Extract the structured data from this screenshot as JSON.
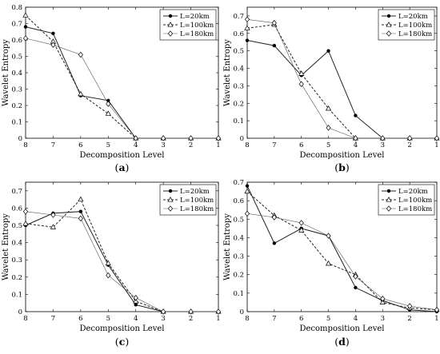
{
  "chart_data": [
    {
      "type": "line",
      "panel_label": "a",
      "x": [
        8,
        7,
        6,
        5,
        4,
        3,
        2,
        1
      ],
      "xlabel": "Decomposition Level",
      "ylabel": "Wavelet Entropy",
      "xlim": [
        8,
        1
      ],
      "ylim": [
        0,
        0.8
      ],
      "yticks": [
        0,
        0.1,
        0.2,
        0.3,
        0.4,
        0.5,
        0.6,
        0.7,
        0.8
      ],
      "legend_position": "top-right",
      "series": [
        {
          "name": "L=20km",
          "marker": "dot",
          "dash": "solid",
          "values": [
            0.68,
            0.64,
            0.26,
            0.23,
            0,
            0,
            0,
            0
          ]
        },
        {
          "name": "L=100km",
          "marker": "triangle",
          "dash": "dashed",
          "values": [
            0.75,
            0.59,
            0.27,
            0.15,
            0,
            0,
            0,
            0
          ]
        },
        {
          "name": "L=180km",
          "marker": "diamond",
          "dash": "thin",
          "values": [
            0.61,
            0.57,
            0.51,
            0.21,
            0,
            0,
            0,
            0
          ]
        }
      ]
    },
    {
      "type": "line",
      "panel_label": "b",
      "x": [
        8,
        7,
        6,
        5,
        4,
        3,
        2,
        1
      ],
      "xlabel": "Decomposition Level",
      "ylabel": "Wavelet Entropy",
      "xlim": [
        8,
        1
      ],
      "ylim": [
        0,
        0.75
      ],
      "yticks": [
        0,
        0.1,
        0.2,
        0.3,
        0.4,
        0.5,
        0.6,
        0.7
      ],
      "legend_position": "top-right",
      "series": [
        {
          "name": "L=20km",
          "marker": "dot",
          "dash": "solid",
          "values": [
            0.56,
            0.53,
            0.36,
            0.5,
            0.13,
            0,
            0,
            0
          ]
        },
        {
          "name": "L=100km",
          "marker": "triangle",
          "dash": "dashed",
          "values": [
            0.63,
            0.65,
            0.37,
            0.17,
            0,
            0,
            0,
            0
          ]
        },
        {
          "name": "L=180km",
          "marker": "diamond",
          "dash": "thin",
          "values": [
            0.68,
            0.66,
            0.31,
            0.06,
            0,
            0,
            0,
            0
          ]
        }
      ]
    },
    {
      "type": "line",
      "panel_label": "c",
      "x": [
        8,
        7,
        6,
        5,
        4,
        3,
        2,
        1
      ],
      "xlabel": "Decomposition Level",
      "ylabel": "Wavelet Entropy",
      "xlim": [
        8,
        1
      ],
      "ylim": [
        0,
        0.75
      ],
      "yticks": [
        0,
        0.1,
        0.2,
        0.3,
        0.4,
        0.5,
        0.6,
        0.7
      ],
      "legend_position": "top-right",
      "series": [
        {
          "name": "L=20km",
          "marker": "dot",
          "dash": "solid",
          "values": [
            0.5,
            0.57,
            0.58,
            0.27,
            0.04,
            0,
            0,
            0
          ]
        },
        {
          "name": "L=100km",
          "marker": "triangle",
          "dash": "dashed",
          "values": [
            0.51,
            0.49,
            0.65,
            0.28,
            0.06,
            0,
            0,
            0
          ]
        },
        {
          "name": "L=180km",
          "marker": "diamond",
          "dash": "thin",
          "values": [
            0.58,
            0.56,
            0.54,
            0.21,
            0.08,
            0,
            0,
            0
          ]
        }
      ]
    },
    {
      "type": "line",
      "panel_label": "d",
      "x": [
        8,
        7,
        6,
        5,
        4,
        3,
        2,
        1
      ],
      "xlabel": "Decomposition Level",
      "ylabel": "Wavelet Entropy",
      "xlim": [
        8,
        1
      ],
      "ylim": [
        0,
        0.7
      ],
      "yticks": [
        0,
        0.1,
        0.2,
        0.3,
        0.4,
        0.5,
        0.6,
        0.7
      ],
      "legend_position": "top-right",
      "series": [
        {
          "name": "L=20km",
          "marker": "dot",
          "dash": "solid",
          "values": [
            0.68,
            0.37,
            0.45,
            0.41,
            0.13,
            0.06,
            0.01,
            0.0
          ]
        },
        {
          "name": "L=100km",
          "marker": "triangle",
          "dash": "dashed",
          "values": [
            0.65,
            0.52,
            0.44,
            0.26,
            0.2,
            0.05,
            0.02,
            0.01
          ]
        },
        {
          "name": "L=180km",
          "marker": "diamond",
          "dash": "thin",
          "values": [
            0.53,
            0.51,
            0.48,
            0.41,
            0.19,
            0.07,
            0.03,
            0.01
          ]
        }
      ]
    }
  ]
}
